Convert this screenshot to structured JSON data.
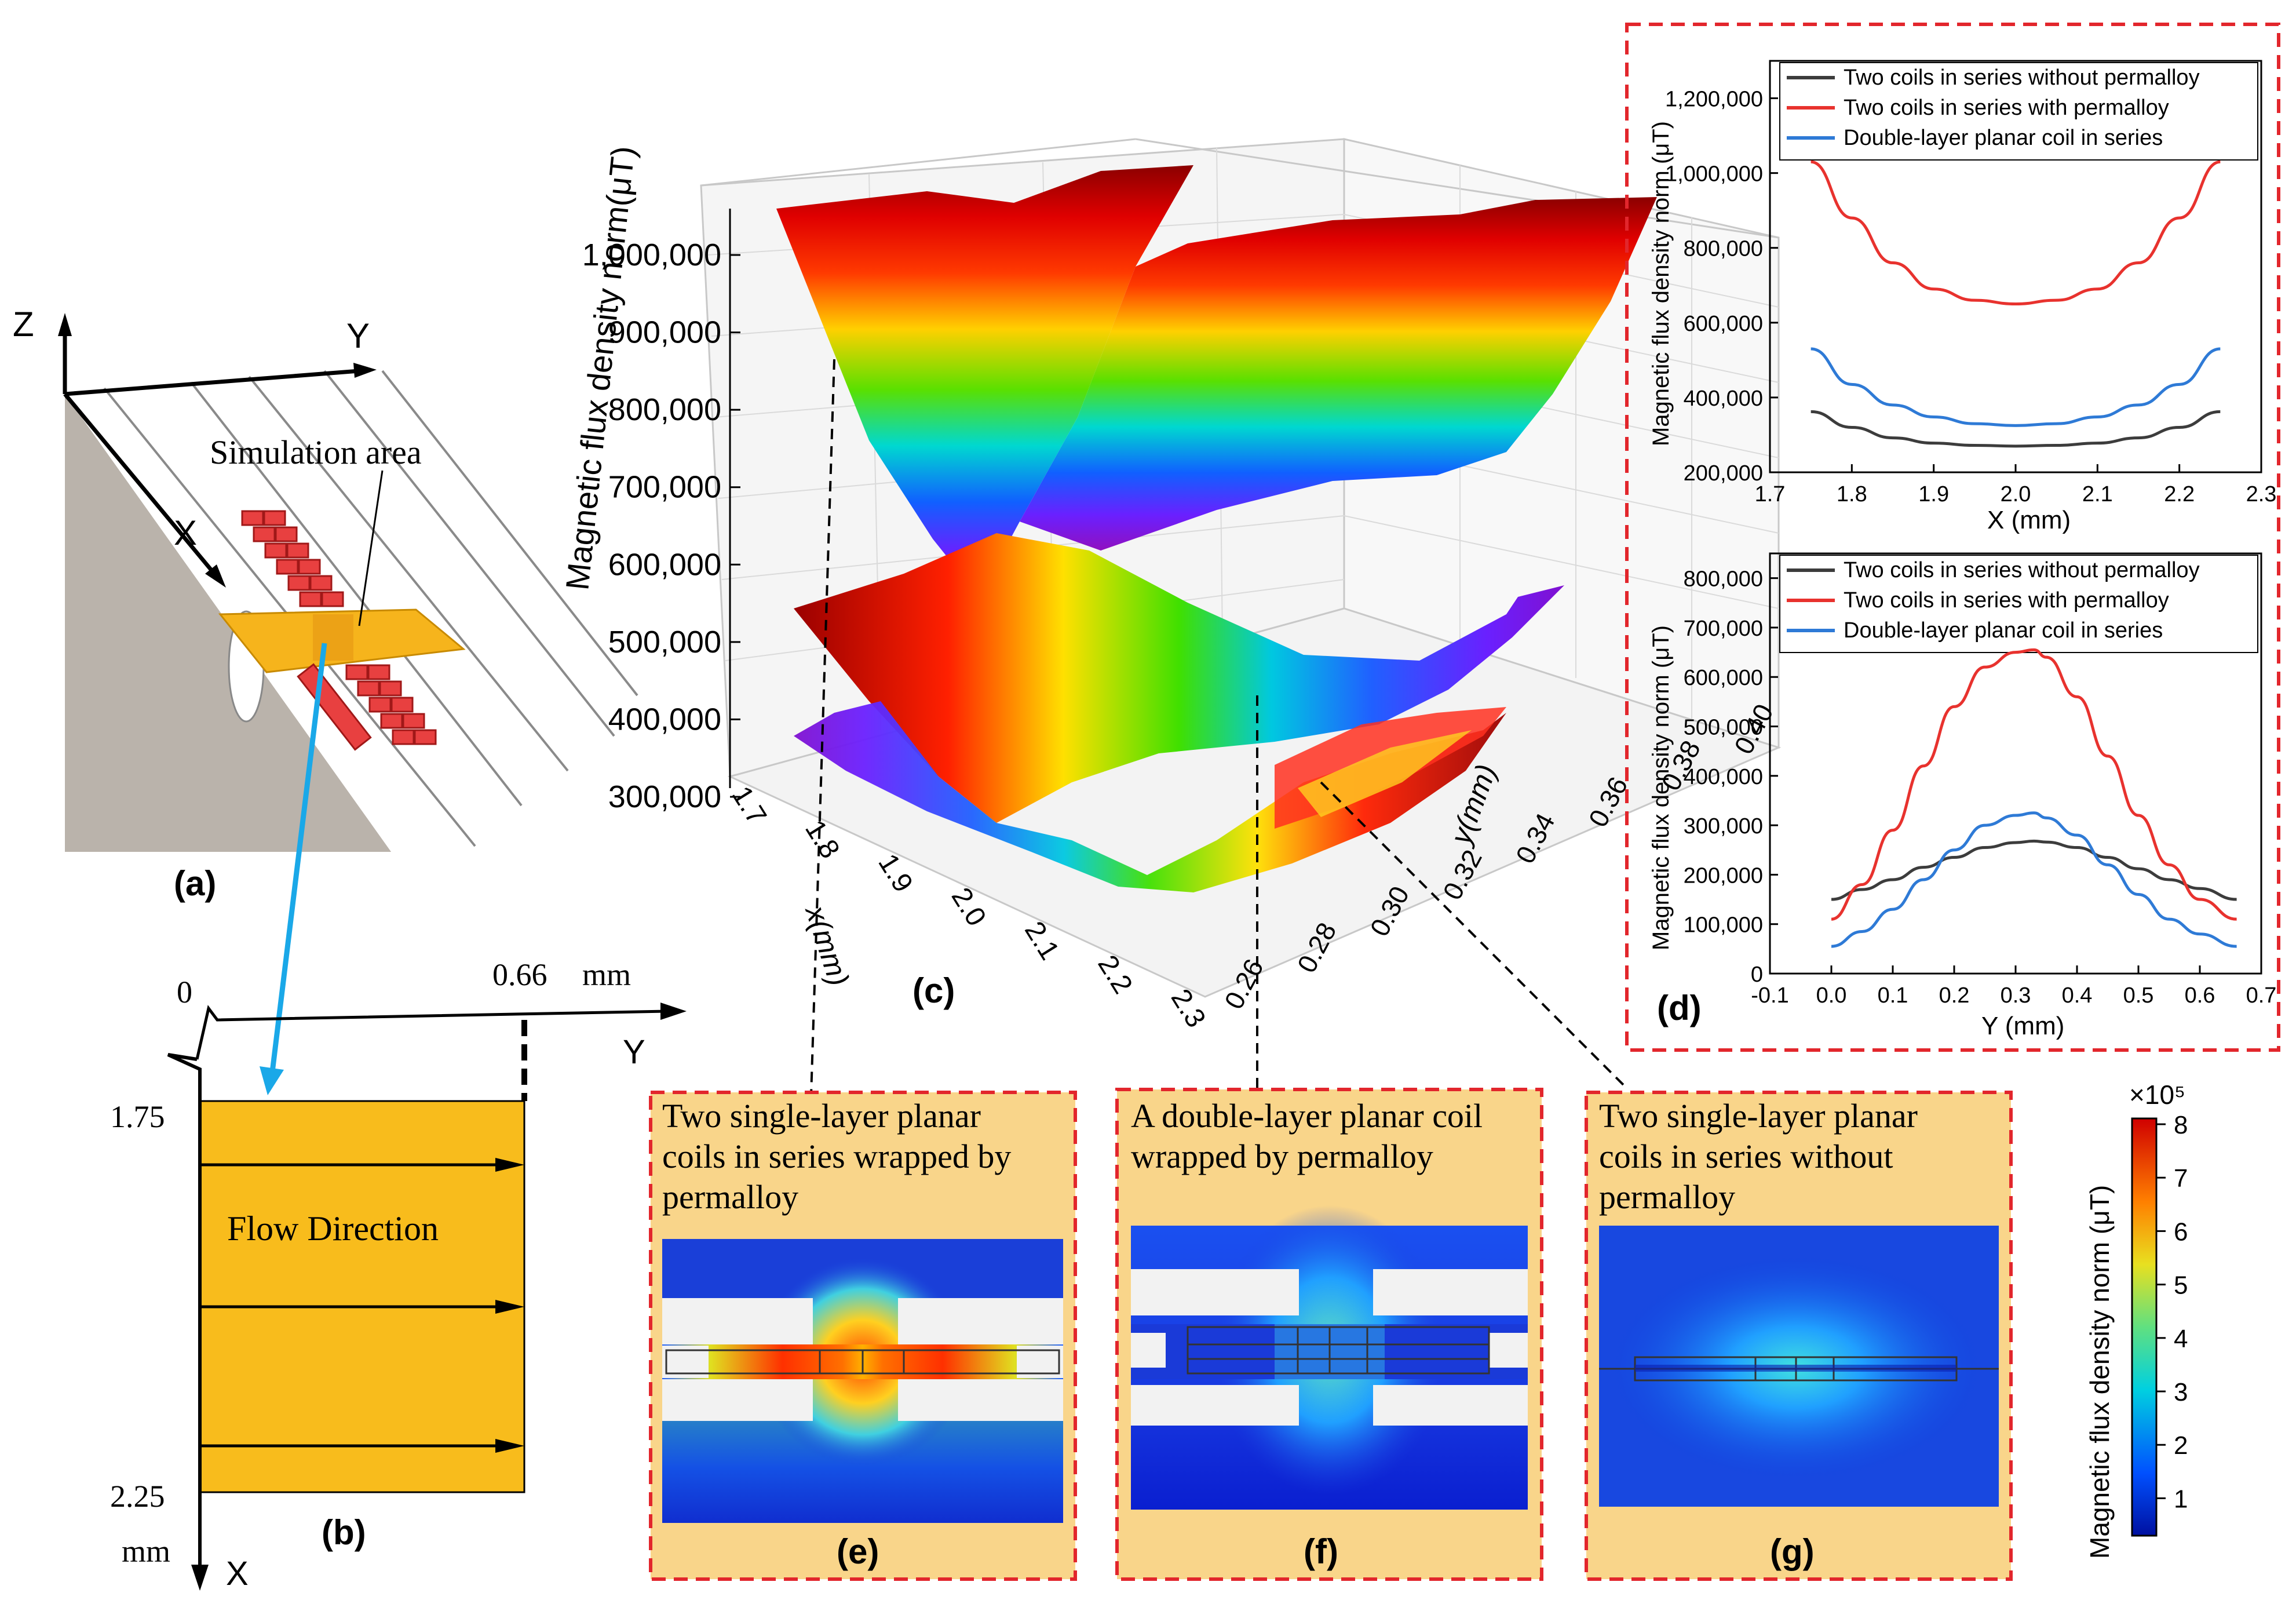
{
  "panel_labels": {
    "a": "(a)",
    "b": "(b)",
    "c": "(c)",
    "d": "(d)",
    "e": "(e)",
    "f": "(f)",
    "g": "(g)"
  },
  "panel_a": {
    "axis_z": "Z",
    "axis_y": "Y",
    "axis_x": "X",
    "simulation_label": "Simulation area"
  },
  "panel_b": {
    "origin": "0",
    "y_end": "0.66",
    "y_unit": "mm",
    "y_axis": "Y",
    "x_start": "1.75",
    "x_end": "2.25",
    "x_unit": "mm",
    "x_axis": "X",
    "flow_label": "Flow Direction"
  },
  "panel_c": {
    "z_label": "Magnetic flux density norm(μT)",
    "z_ticks": [
      "300,000",
      "400,000",
      "500,000",
      "600,000",
      "700,000",
      "800,000",
      "900,000",
      "1,000,000"
    ],
    "x_label": "x(mm)",
    "x_ticks": [
      "1.7",
      "1.8",
      "1.9",
      "2.0",
      "2.1",
      "2.2",
      "2.3"
    ],
    "y_label": "y(mm)",
    "y_ticks": [
      "0.26",
      "0.28",
      "0.30",
      "0.32",
      "0.34",
      "0.36",
      "0.38",
      "0.40"
    ]
  },
  "panel_d": {
    "legend": [
      "Two coils in series  without permalloy",
      "Two coils in series with permalloy",
      "Double-layer planar coil in series"
    ],
    "colors": [
      "#3c3c3c",
      "#e8322e",
      "#2e7ad6"
    ],
    "top": {
      "xlabel": "X (mm)",
      "ylabel": "Magnetic flux density norm (μT)",
      "yticks": [
        "200,000",
        "400,000",
        "600,000",
        "800,000",
        "1,000,000",
        "1,200,000"
      ],
      "xticks": [
        "1.7",
        "1.8",
        "1.9",
        "2.0",
        "2.1",
        "2.2",
        "2.3"
      ]
    },
    "bottom": {
      "xlabel": "Y (mm)",
      "ylabel": "Magnetic flux density norm (μT)",
      "yticks": [
        "0",
        "100,000",
        "200,000",
        "300,000",
        "400,000",
        "500,000",
        "600,000",
        "700,000",
        "800,000"
      ],
      "xticks": [
        "-0.1",
        "0.0",
        "0.1",
        "0.2",
        "0.3",
        "0.4",
        "0.5",
        "0.6",
        "0.7"
      ]
    }
  },
  "panel_e": {
    "text": "Two single-layer planar coils in series wrapped by permalloy"
  },
  "panel_f": {
    "text": "A double-layer planar coil wrapped by permalloy"
  },
  "panel_g": {
    "text": "Two single-layer  planar coils in series without permalloy"
  },
  "colorbar": {
    "label": "Magnetic flux density norm (μT)",
    "multiplier": "×10⁵",
    "ticks": [
      "1",
      "2",
      "3",
      "4",
      "5",
      "6",
      "7",
      "8"
    ]
  },
  "chart_data": [
    {
      "type": "line",
      "title": "",
      "xlabel": "X (mm)",
      "ylabel": "Magnetic flux density norm (μT)",
      "xlim": [
        1.7,
        2.3
      ],
      "ylim": [
        200000,
        1300000
      ],
      "x": [
        1.75,
        1.8,
        1.85,
        1.9,
        1.95,
        2.0,
        2.05,
        2.1,
        2.15,
        2.2,
        2.25
      ],
      "series": [
        {
          "name": "Two coils in series  without permalloy",
          "values": [
            362000,
            320000,
            292000,
            278000,
            272000,
            270000,
            272000,
            278000,
            292000,
            320000,
            362000
          ]
        },
        {
          "name": "Two coils in series with permalloy",
          "values": [
            1030000,
            880000,
            760000,
            690000,
            660000,
            650000,
            660000,
            690000,
            760000,
            880000,
            1030000
          ]
        },
        {
          "name": "Double-layer planar coil in series",
          "values": [
            530000,
            435000,
            380000,
            348000,
            330000,
            325000,
            330000,
            348000,
            380000,
            435000,
            530000
          ]
        }
      ]
    },
    {
      "type": "line",
      "title": "",
      "xlabel": "Y (mm)",
      "ylabel": "Magnetic flux density norm (μT)",
      "xlim": [
        -0.1,
        0.7
      ],
      "ylim": [
        0,
        850000
      ],
      "x": [
        0.0,
        0.05,
        0.1,
        0.15,
        0.2,
        0.25,
        0.3,
        0.33,
        0.35,
        0.4,
        0.45,
        0.5,
        0.55,
        0.6,
        0.66
      ],
      "series": [
        {
          "name": "Two coils in series  without permalloy",
          "values": [
            150000,
            170000,
            190000,
            215000,
            235000,
            255000,
            265000,
            268000,
            266000,
            255000,
            235000,
            212000,
            190000,
            172000,
            150000
          ]
        },
        {
          "name": "Two coils in series with permalloy",
          "values": [
            110000,
            180000,
            290000,
            420000,
            540000,
            620000,
            650000,
            655000,
            640000,
            560000,
            440000,
            320000,
            220000,
            150000,
            110000
          ]
        },
        {
          "name": "Double-layer planar coil in series",
          "values": [
            55000,
            85000,
            130000,
            190000,
            250000,
            300000,
            320000,
            325000,
            315000,
            280000,
            220000,
            160000,
            110000,
            80000,
            55000
          ]
        }
      ]
    },
    {
      "type": "surface",
      "title": "",
      "xlabel": "x(mm)",
      "ylabel": "y(mm)",
      "zlabel": "Magnetic flux density norm(μT)",
      "xlim": [
        1.7,
        2.3
      ],
      "ylim": [
        0.26,
        0.4
      ],
      "zlim": [
        300000,
        1000000
      ]
    }
  ]
}
